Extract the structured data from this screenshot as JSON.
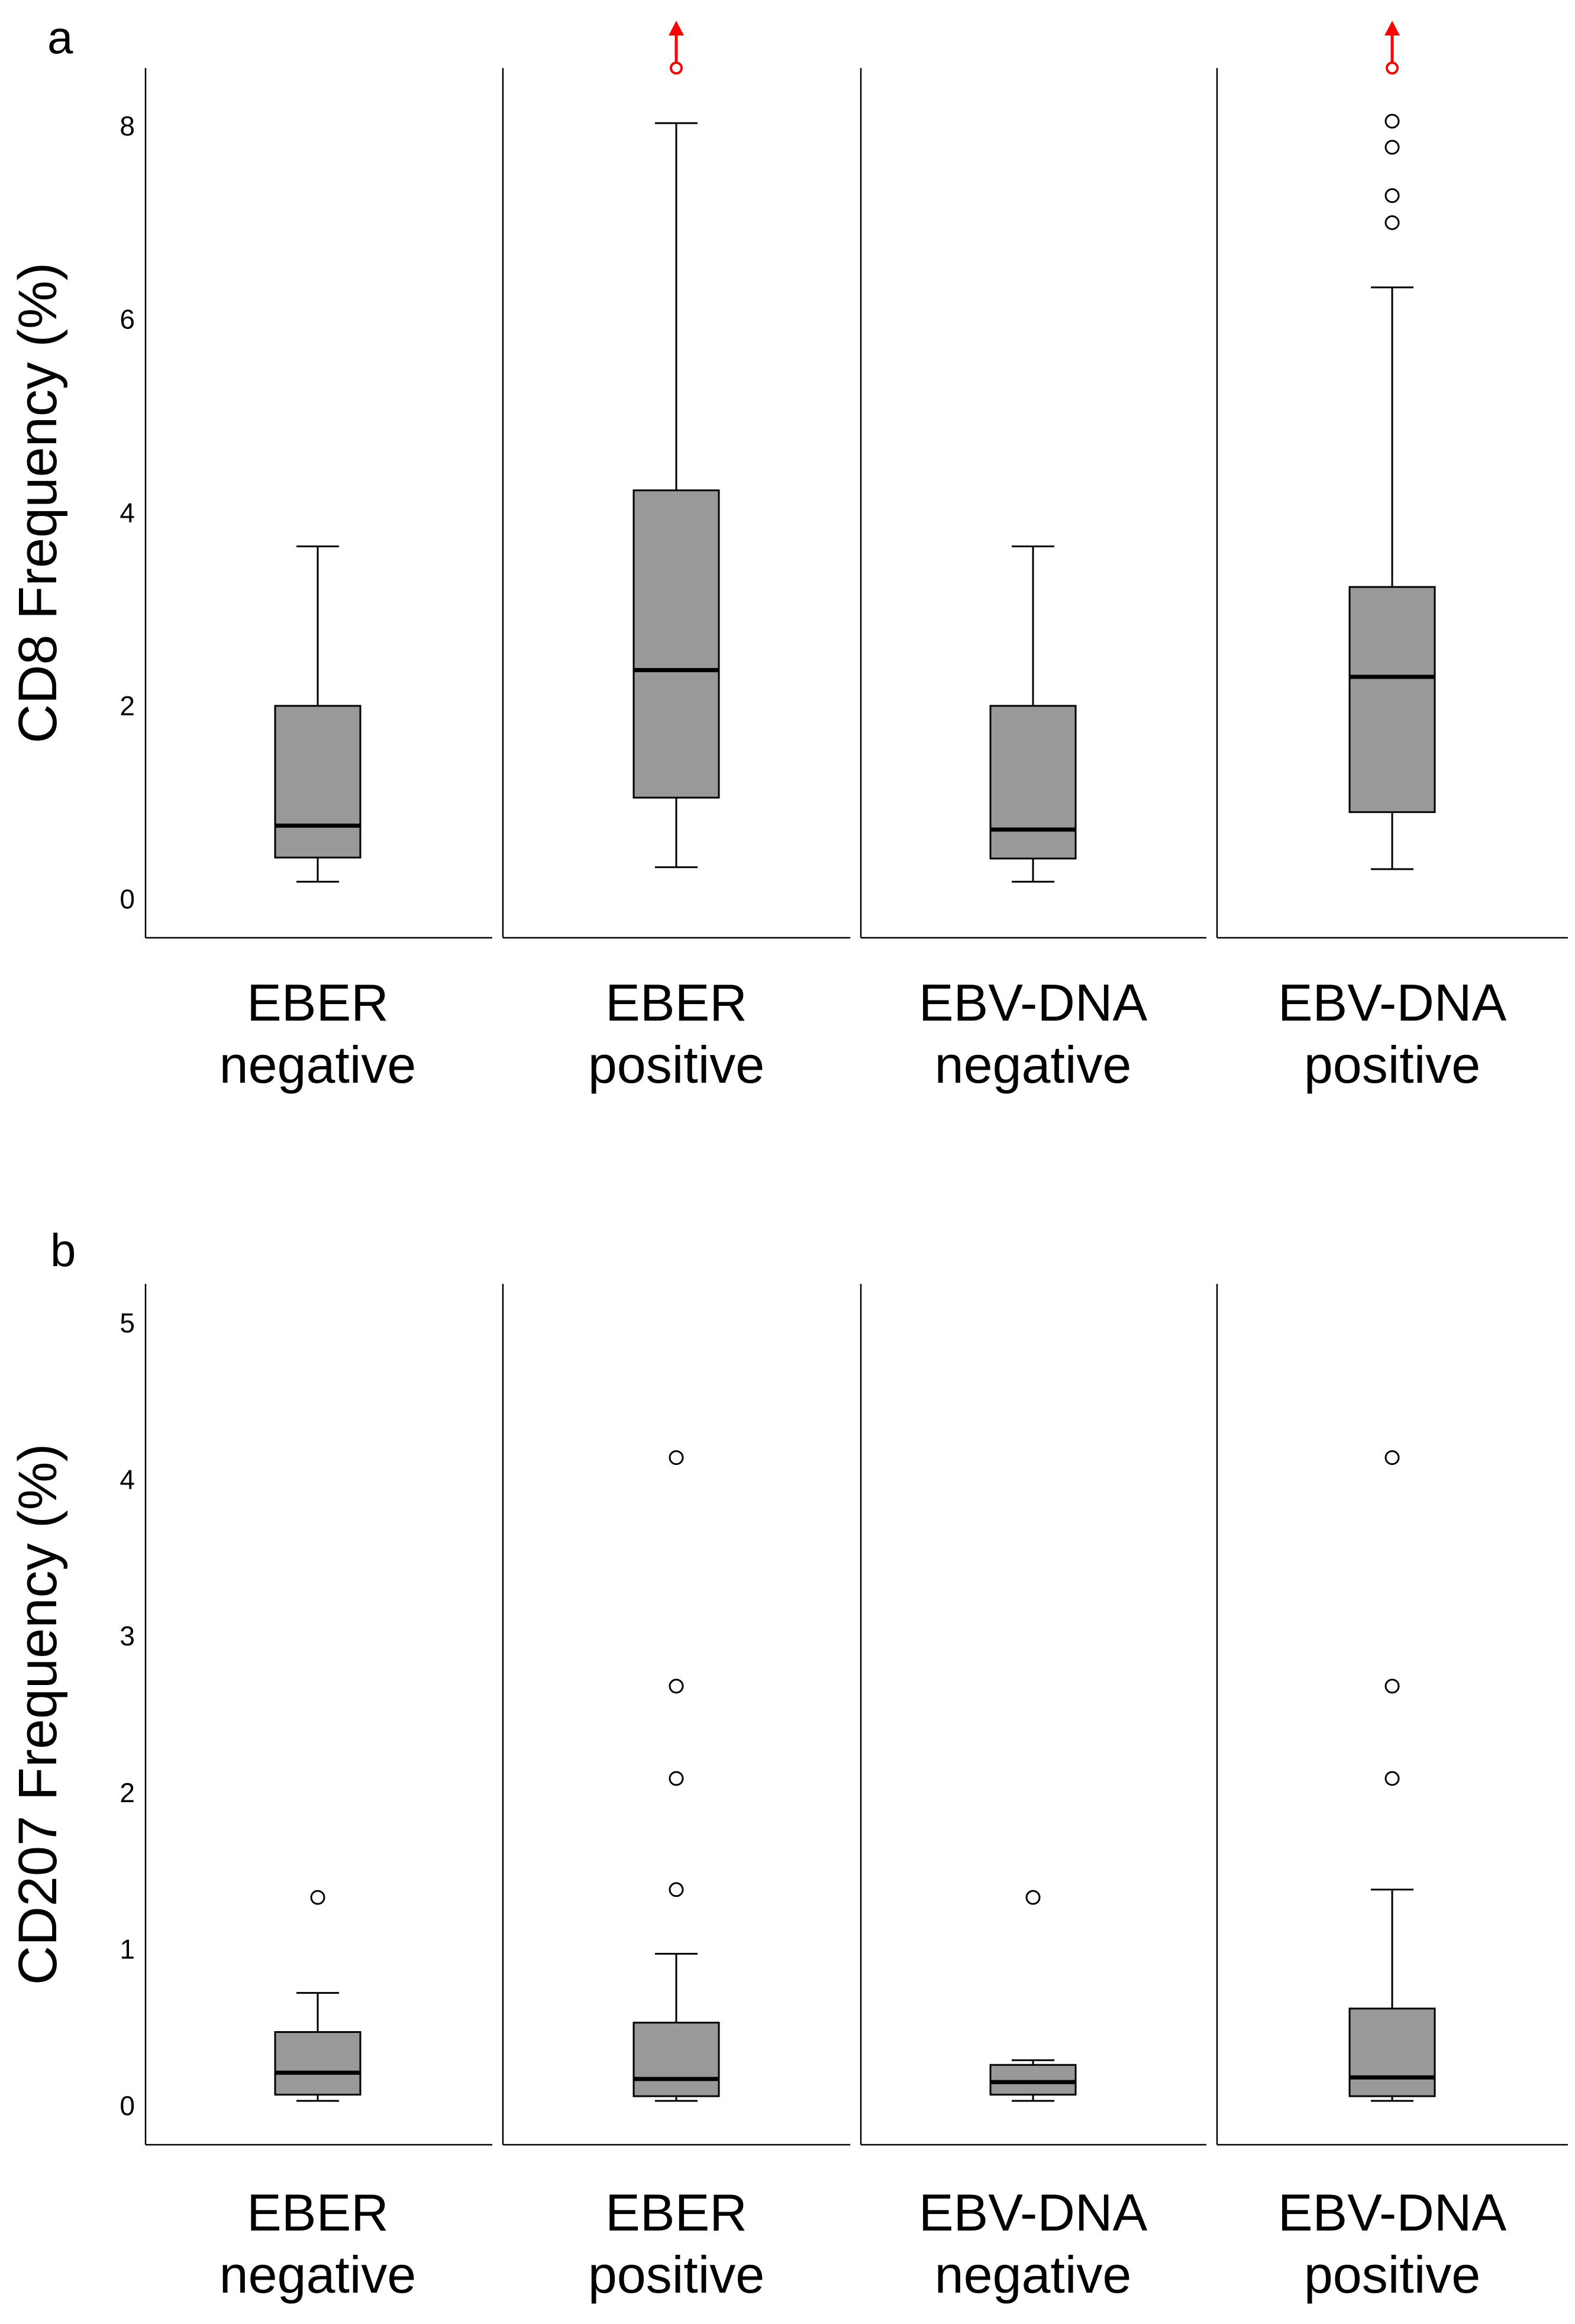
{
  "chart_data": [
    {
      "panel": "a",
      "type": "box",
      "ylabel": "CD8 Frequency (%)",
      "xlabel": "",
      "ylim": [
        -0.4,
        8.6
      ],
      "yticks": [
        "0",
        "2",
        "4",
        "6",
        "8"
      ],
      "ytick_values": [
        0,
        2,
        4,
        6,
        8
      ],
      "categories": [
        [
          "EBER",
          "negative"
        ],
        [
          "EBER",
          "positive"
        ],
        [
          "EBV-DNA",
          "negative"
        ],
        [
          "EBV-DNA",
          "positive"
        ]
      ],
      "boxes": [
        {
          "whisker_low": 0.18,
          "q1": 0.43,
          "median": 0.76,
          "q3": 2.0,
          "whisker_high": 3.65,
          "outliers": [],
          "offscale": false
        },
        {
          "whisker_low": 0.33,
          "q1": 1.05,
          "median": 2.37,
          "q3": 4.23,
          "whisker_high": 8.03,
          "outliers": [],
          "offscale": true
        },
        {
          "whisker_low": 0.18,
          "q1": 0.42,
          "median": 0.72,
          "q3": 2.0,
          "whisker_high": 3.65,
          "outliers": [],
          "offscale": false
        },
        {
          "whisker_low": 0.31,
          "q1": 0.9,
          "median": 2.3,
          "q3": 3.23,
          "whisker_high": 6.33,
          "outliers": [
            7.0,
            7.28,
            7.78,
            8.05
          ],
          "offscale": true
        }
      ],
      "box_color": "#999999",
      "offscale_color": "#ff0000"
    },
    {
      "panel": "b",
      "type": "box",
      "ylabel": "CD207 Frequency (%)",
      "xlabel": "",
      "ylim": [
        -0.25,
        5.25
      ],
      "yticks": [
        "0",
        "1",
        "2",
        "3",
        "4",
        "5"
      ],
      "ytick_values": [
        0,
        1,
        2,
        3,
        4,
        5
      ],
      "categories": [
        [
          "EBER",
          "negative"
        ],
        [
          "EBER",
          "positive"
        ],
        [
          "EBV-DNA",
          "negative"
        ],
        [
          "EBV-DNA",
          "positive"
        ]
      ],
      "boxes": [
        {
          "whisker_low": 0.03,
          "q1": 0.07,
          "median": 0.21,
          "q3": 0.47,
          "whisker_high": 0.72,
          "outliers": [
            1.33
          ],
          "offscale": false
        },
        {
          "whisker_low": 0.03,
          "q1": 0.06,
          "median": 0.17,
          "q3": 0.53,
          "whisker_high": 0.97,
          "outliers": [
            1.38,
            2.09,
            2.68,
            4.14
          ],
          "offscale": false
        },
        {
          "whisker_low": 0.03,
          "q1": 0.07,
          "median": 0.15,
          "q3": 0.26,
          "whisker_high": 0.29,
          "outliers": [
            1.33
          ],
          "offscale": false
        },
        {
          "whisker_low": 0.03,
          "q1": 0.06,
          "median": 0.18,
          "q3": 0.62,
          "whisker_high": 1.38,
          "outliers": [
            2.09,
            2.68,
            4.14
          ],
          "offscale": false
        }
      ],
      "box_color": "#999999",
      "offscale_color": "#ff0000"
    }
  ]
}
